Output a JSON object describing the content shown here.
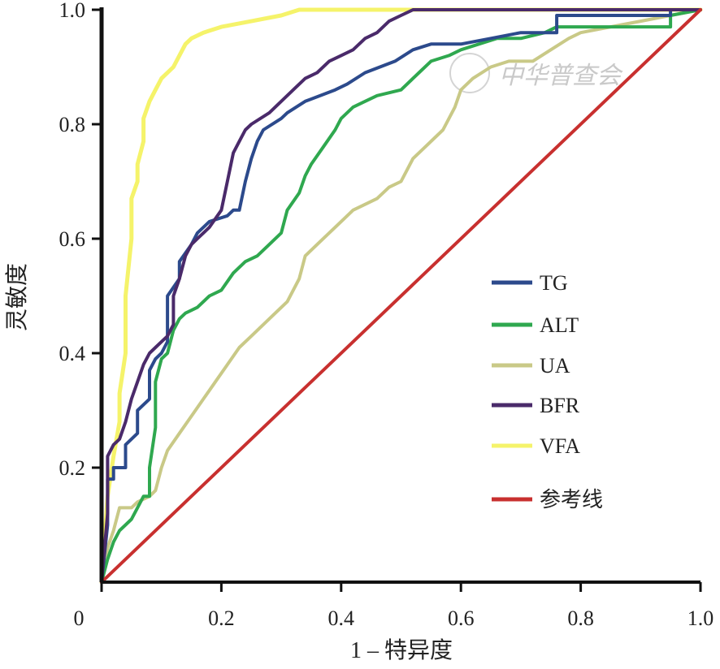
{
  "chart_data": {
    "type": "line",
    "xlabel": "1 – 特异度",
    "ylabel": "灵敏度",
    "xlim": [
      0,
      1
    ],
    "ylim": [
      0,
      1
    ],
    "x_ticks": [
      "0",
      "0.2",
      "0.4",
      "0.6",
      "0.8",
      "1.0"
    ],
    "y_ticks": [
      "0.2",
      "0.4",
      "0.6",
      "0.8",
      "1.0"
    ],
    "x_tick_values": [
      0,
      0.2,
      0.4,
      0.6,
      0.8,
      1.0
    ],
    "y_tick_values": [
      0.2,
      0.4,
      0.6,
      0.8,
      1.0
    ],
    "grid": false,
    "legend_position": "right",
    "watermark": "中华普查会",
    "series": [
      {
        "name": "TG",
        "color": "#2c4a8c",
        "points": [
          [
            0,
            0
          ],
          [
            0.01,
            0.1
          ],
          [
            0.01,
            0.18
          ],
          [
            0.02,
            0.18
          ],
          [
            0.02,
            0.2
          ],
          [
            0.04,
            0.2
          ],
          [
            0.04,
            0.24
          ],
          [
            0.06,
            0.26
          ],
          [
            0.06,
            0.3
          ],
          [
            0.08,
            0.32
          ],
          [
            0.08,
            0.37
          ],
          [
            0.09,
            0.39
          ],
          [
            0.1,
            0.4
          ],
          [
            0.11,
            0.42
          ],
          [
            0.11,
            0.5
          ],
          [
            0.13,
            0.53
          ],
          [
            0.13,
            0.56
          ],
          [
            0.15,
            0.59
          ],
          [
            0.16,
            0.61
          ],
          [
            0.18,
            0.63
          ],
          [
            0.21,
            0.64
          ],
          [
            0.22,
            0.65
          ],
          [
            0.23,
            0.65
          ],
          [
            0.24,
            0.7
          ],
          [
            0.25,
            0.74
          ],
          [
            0.26,
            0.77
          ],
          [
            0.27,
            0.79
          ],
          [
            0.3,
            0.81
          ],
          [
            0.31,
            0.82
          ],
          [
            0.34,
            0.84
          ],
          [
            0.39,
            0.86
          ],
          [
            0.41,
            0.87
          ],
          [
            0.44,
            0.89
          ],
          [
            0.49,
            0.91
          ],
          [
            0.52,
            0.93
          ],
          [
            0.55,
            0.94
          ],
          [
            0.6,
            0.94
          ],
          [
            0.65,
            0.95
          ],
          [
            0.7,
            0.96
          ],
          [
            0.76,
            0.96
          ],
          [
            0.76,
            0.99
          ],
          [
            0.8,
            0.99
          ],
          [
            0.9,
            0.99
          ],
          [
            0.95,
            0.99
          ],
          [
            0.95,
            1
          ],
          [
            1,
            1
          ]
        ]
      },
      {
        "name": "ALT",
        "color": "#2fa84f",
        "points": [
          [
            0,
            0
          ],
          [
            0.01,
            0.04
          ],
          [
            0.02,
            0.07
          ],
          [
            0.03,
            0.09
          ],
          [
            0.04,
            0.1
          ],
          [
            0.05,
            0.11
          ],
          [
            0.06,
            0.13
          ],
          [
            0.07,
            0.15
          ],
          [
            0.08,
            0.15
          ],
          [
            0.08,
            0.2
          ],
          [
            0.09,
            0.27
          ],
          [
            0.09,
            0.35
          ],
          [
            0.1,
            0.39
          ],
          [
            0.11,
            0.4
          ],
          [
            0.12,
            0.44
          ],
          [
            0.13,
            0.46
          ],
          [
            0.14,
            0.47
          ],
          [
            0.16,
            0.48
          ],
          [
            0.18,
            0.5
          ],
          [
            0.2,
            0.51
          ],
          [
            0.22,
            0.54
          ],
          [
            0.24,
            0.56
          ],
          [
            0.26,
            0.57
          ],
          [
            0.28,
            0.59
          ],
          [
            0.3,
            0.61
          ],
          [
            0.31,
            0.65
          ],
          [
            0.33,
            0.68
          ],
          [
            0.34,
            0.71
          ],
          [
            0.35,
            0.73
          ],
          [
            0.37,
            0.76
          ],
          [
            0.39,
            0.79
          ],
          [
            0.4,
            0.81
          ],
          [
            0.42,
            0.83
          ],
          [
            0.44,
            0.84
          ],
          [
            0.46,
            0.85
          ],
          [
            0.5,
            0.86
          ],
          [
            0.53,
            0.89
          ],
          [
            0.55,
            0.91
          ],
          [
            0.58,
            0.92
          ],
          [
            0.6,
            0.93
          ],
          [
            0.63,
            0.94
          ],
          [
            0.66,
            0.95
          ],
          [
            0.7,
            0.95
          ],
          [
            0.74,
            0.96
          ],
          [
            0.76,
            0.97
          ],
          [
            0.8,
            0.97
          ],
          [
            0.85,
            0.97
          ],
          [
            0.9,
            0.97
          ],
          [
            0.95,
            0.97
          ],
          [
            0.95,
            0.99
          ],
          [
            1,
            1
          ]
        ]
      },
      {
        "name": "UA",
        "color": "#c9c987",
        "points": [
          [
            0,
            0
          ],
          [
            0.01,
            0.06
          ],
          [
            0.02,
            0.09
          ],
          [
            0.03,
            0.13
          ],
          [
            0.05,
            0.13
          ],
          [
            0.06,
            0.14
          ],
          [
            0.08,
            0.15
          ],
          [
            0.09,
            0.16
          ],
          [
            0.1,
            0.2
          ],
          [
            0.11,
            0.23
          ],
          [
            0.13,
            0.26
          ],
          [
            0.15,
            0.29
          ],
          [
            0.17,
            0.32
          ],
          [
            0.19,
            0.35
          ],
          [
            0.21,
            0.38
          ],
          [
            0.23,
            0.41
          ],
          [
            0.25,
            0.43
          ],
          [
            0.27,
            0.45
          ],
          [
            0.29,
            0.47
          ],
          [
            0.31,
            0.49
          ],
          [
            0.33,
            0.53
          ],
          [
            0.34,
            0.57
          ],
          [
            0.36,
            0.59
          ],
          [
            0.38,
            0.61
          ],
          [
            0.4,
            0.63
          ],
          [
            0.42,
            0.65
          ],
          [
            0.44,
            0.66
          ],
          [
            0.46,
            0.67
          ],
          [
            0.48,
            0.69
          ],
          [
            0.5,
            0.7
          ],
          [
            0.52,
            0.74
          ],
          [
            0.54,
            0.76
          ],
          [
            0.57,
            0.79
          ],
          [
            0.59,
            0.83
          ],
          [
            0.6,
            0.86
          ],
          [
            0.62,
            0.88
          ],
          [
            0.65,
            0.9
          ],
          [
            0.68,
            0.91
          ],
          [
            0.72,
            0.91
          ],
          [
            0.75,
            0.93
          ],
          [
            0.78,
            0.95
          ],
          [
            0.8,
            0.96
          ],
          [
            0.85,
            0.97
          ],
          [
            0.9,
            0.98
          ],
          [
            0.95,
            0.99
          ],
          [
            1,
            1
          ]
        ]
      },
      {
        "name": "BFR",
        "color": "#4a2a6a",
        "points": [
          [
            0,
            0
          ],
          [
            0.01,
            0.12
          ],
          [
            0.01,
            0.22
          ],
          [
            0.02,
            0.24
          ],
          [
            0.03,
            0.25
          ],
          [
            0.04,
            0.28
          ],
          [
            0.05,
            0.32
          ],
          [
            0.06,
            0.35
          ],
          [
            0.07,
            0.38
          ],
          [
            0.08,
            0.4
          ],
          [
            0.09,
            0.41
          ],
          [
            0.1,
            0.42
          ],
          [
            0.11,
            0.43
          ],
          [
            0.12,
            0.45
          ],
          [
            0.12,
            0.5
          ],
          [
            0.13,
            0.53
          ],
          [
            0.14,
            0.57
          ],
          [
            0.15,
            0.59
          ],
          [
            0.16,
            0.6
          ],
          [
            0.18,
            0.62
          ],
          [
            0.2,
            0.65
          ],
          [
            0.21,
            0.7
          ],
          [
            0.22,
            0.75
          ],
          [
            0.23,
            0.77
          ],
          [
            0.24,
            0.79
          ],
          [
            0.25,
            0.8
          ],
          [
            0.28,
            0.82
          ],
          [
            0.3,
            0.84
          ],
          [
            0.32,
            0.86
          ],
          [
            0.34,
            0.88
          ],
          [
            0.36,
            0.89
          ],
          [
            0.38,
            0.91
          ],
          [
            0.4,
            0.92
          ],
          [
            0.42,
            0.93
          ],
          [
            0.44,
            0.95
          ],
          [
            0.46,
            0.96
          ],
          [
            0.48,
            0.98
          ],
          [
            0.5,
            0.99
          ],
          [
            0.52,
            1
          ],
          [
            0.6,
            1
          ],
          [
            0.8,
            1
          ],
          [
            1,
            1
          ]
        ]
      },
      {
        "name": "VFA",
        "color": "#f5f36a",
        "points": [
          [
            0,
            0
          ],
          [
            0.01,
            0.15
          ],
          [
            0.02,
            0.22
          ],
          [
            0.03,
            0.28
          ],
          [
            0.03,
            0.33
          ],
          [
            0.04,
            0.4
          ],
          [
            0.04,
            0.5
          ],
          [
            0.05,
            0.6
          ],
          [
            0.05,
            0.67
          ],
          [
            0.06,
            0.7
          ],
          [
            0.06,
            0.73
          ],
          [
            0.07,
            0.77
          ],
          [
            0.07,
            0.81
          ],
          [
            0.08,
            0.84
          ],
          [
            0.09,
            0.86
          ],
          [
            0.1,
            0.88
          ],
          [
            0.11,
            0.89
          ],
          [
            0.12,
            0.9
          ],
          [
            0.13,
            0.92
          ],
          [
            0.14,
            0.94
          ],
          [
            0.15,
            0.95
          ],
          [
            0.17,
            0.96
          ],
          [
            0.2,
            0.97
          ],
          [
            0.25,
            0.98
          ],
          [
            0.3,
            0.99
          ],
          [
            0.33,
            1
          ],
          [
            0.5,
            1
          ],
          [
            0.8,
            1
          ],
          [
            1,
            1
          ]
        ]
      },
      {
        "name": "参考线",
        "color": "#c8302f",
        "points": [
          [
            0,
            0
          ],
          [
            1,
            1
          ]
        ]
      }
    ]
  }
}
